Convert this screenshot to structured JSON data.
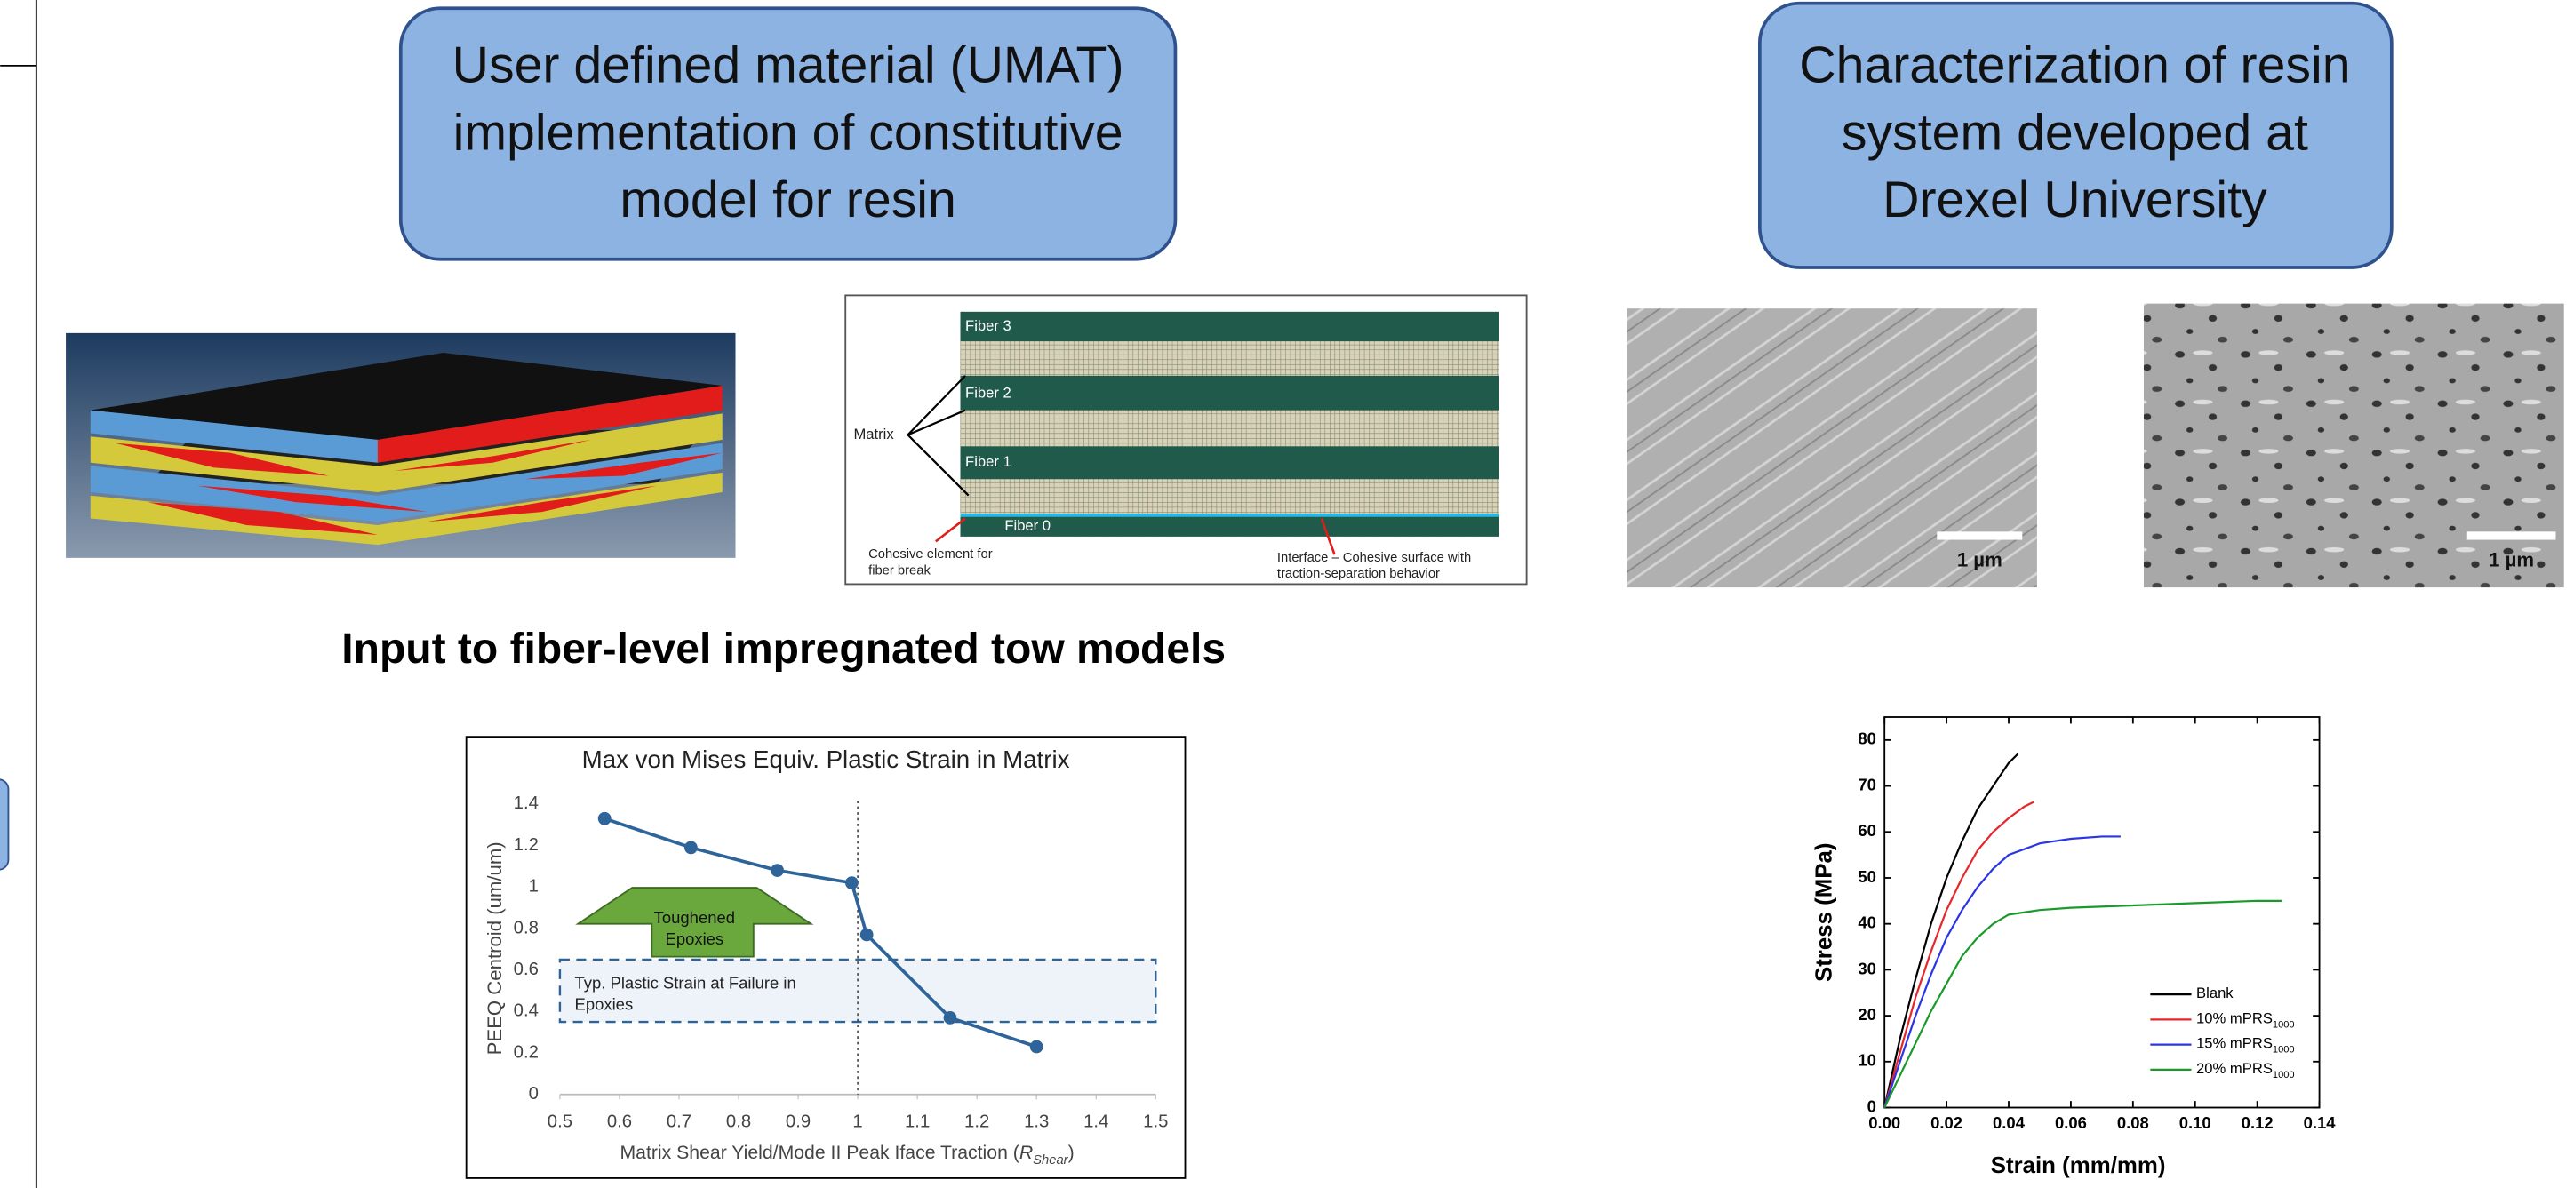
{
  "boxes": [
    {
      "lines": [
        "User defined material (UMAT)",
        "implementation of constitutive",
        "model for resin"
      ]
    },
    {
      "lines": [
        "Characterization of resin",
        "system developed at",
        "Drexel University"
      ]
    }
  ],
  "heading": "Input to fiber-level impregnated tow models",
  "fiber_diagram": {
    "fibers": [
      "Fiber 3",
      "Fiber 2",
      "Fiber 1",
      "Fiber 0"
    ],
    "matrix_label": "Matrix",
    "cohesive_label": [
      "Cohesive element for",
      "fiber break"
    ],
    "interface_label": [
      "Interface – Cohesive surface with",
      "traction-separation behavior"
    ]
  },
  "sem_images": [
    {
      "scale_label": "1 µm"
    },
    {
      "scale_label": "1 µm"
    }
  ],
  "chart_data": [
    {
      "type": "line",
      "title": "Max von Mises Equiv. Plastic Strain in Matrix",
      "x_label": {
        "text": "Matrix Shear Yield/Mode II Peak Iface Traction (",
        "symbol": "R",
        "subscript": "Shear",
        "close": ")"
      },
      "y_label": "PEEQ Centroid (um/um)",
      "x": [
        0.575,
        0.72,
        0.865,
        0.99,
        1.015,
        1.155,
        1.3
      ],
      "values": [
        1.33,
        1.19,
        1.08,
        1.02,
        0.77,
        0.37,
        0.23
      ],
      "color": "#2e6499",
      "xlim": [
        0.5,
        1.5
      ],
      "ylim": [
        0,
        1.4
      ],
      "xticks": [
        0.5,
        0.6,
        0.7,
        0.8,
        0.9,
        1,
        1.1,
        1.2,
        1.3,
        1.4,
        1.5
      ],
      "yticks": [
        0,
        0.2,
        0.4,
        0.6,
        0.8,
        1,
        1.2,
        1.4
      ],
      "arrow_label": [
        "Toughened",
        "Epoxies"
      ],
      "band": [
        0.35,
        0.65
      ],
      "band_label": [
        "Typ. Plastic Strain at Failure in",
        "Epoxies"
      ],
      "vline": 1
    },
    {
      "type": "line",
      "x_label": "Strain (mm/mm)",
      "y_label": "Stress (MPa)",
      "xlim": [
        0,
        0.14
      ],
      "ylim": [
        0,
        85
      ],
      "xticks": [
        {
          "value": 0,
          "label": "0.00"
        },
        0.02,
        0.04,
        0.06,
        0.08,
        {
          "value": 0.1,
          "label": "0.10"
        },
        0.12,
        0.14
      ],
      "yticks": [
        0,
        10,
        20,
        30,
        40,
        50,
        60,
        70,
        80
      ],
      "legend": "lower right",
      "series": [
        {
          "name": "Blank",
          "color": "#000000",
          "x": [
            0,
            0.005,
            0.01,
            0.015,
            0.02,
            0.025,
            0.03,
            0.035,
            0.04,
            0.043
          ],
          "values": [
            0,
            15,
            28,
            40,
            50,
            58,
            65,
            70,
            75,
            77
          ]
        },
        {
          "name": "10% mPRS",
          "subscript": "1000",
          "color": "#e8262a",
          "x": [
            0,
            0.005,
            0.01,
            0.015,
            0.02,
            0.025,
            0.03,
            0.035,
            0.04,
            0.045,
            0.048
          ],
          "values": [
            0,
            12,
            24,
            34,
            43,
            50,
            56,
            60,
            63,
            65.5,
            66.5
          ]
        },
        {
          "name": "15% mPRS",
          "subscript": "1000",
          "color": "#2a35e8",
          "x": [
            0,
            0.005,
            0.01,
            0.015,
            0.02,
            0.025,
            0.03,
            0.035,
            0.04,
            0.05,
            0.06,
            0.07,
            0.076
          ],
          "values": [
            0,
            10,
            20,
            29,
            37,
            43,
            48,
            52,
            55,
            57.5,
            58.5,
            59,
            59
          ]
        },
        {
          "name": "20% mPRS",
          "subscript": "1000",
          "color": "#1a9a2a",
          "x": [
            0,
            0.005,
            0.01,
            0.015,
            0.02,
            0.025,
            0.03,
            0.035,
            0.04,
            0.05,
            0.06,
            0.08,
            0.1,
            0.12,
            0.128
          ],
          "values": [
            0,
            7,
            14,
            21,
            27,
            33,
            37,
            40,
            42,
            43,
            43.5,
            44,
            44.5,
            45,
            45
          ]
        }
      ]
    }
  ]
}
